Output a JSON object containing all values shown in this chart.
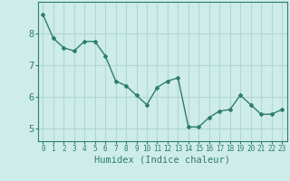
{
  "x": [
    0,
    1,
    2,
    3,
    4,
    5,
    6,
    7,
    8,
    9,
    10,
    11,
    12,
    13,
    14,
    15,
    16,
    17,
    18,
    19,
    20,
    21,
    22,
    23
  ],
  "y": [
    8.6,
    7.85,
    7.55,
    7.45,
    7.75,
    7.75,
    7.3,
    6.5,
    6.35,
    6.05,
    5.75,
    6.3,
    6.5,
    6.6,
    5.05,
    5.05,
    5.35,
    5.55,
    5.6,
    6.05,
    5.75,
    5.45,
    5.45,
    5.6
  ],
  "xlabel": "Humidex (Indice chaleur)",
  "xlim": [
    -0.5,
    23.5
  ],
  "ylim": [
    4.6,
    9.0
  ],
  "yticks": [
    5,
    6,
    7,
    8
  ],
  "xticks": [
    0,
    1,
    2,
    3,
    4,
    5,
    6,
    7,
    8,
    9,
    10,
    11,
    12,
    13,
    14,
    15,
    16,
    17,
    18,
    19,
    20,
    21,
    22,
    23
  ],
  "line_color": "#2d7d6e",
  "marker": "D",
  "marker_size": 2.0,
  "bg_color": "#ceecea",
  "grid_color": "#b0d8d4",
  "tick_color": "#2d7d6e",
  "label_color": "#2d7d6e",
  "font_size_xlabel": 7.5,
  "font_size_yticks": 7.5,
  "font_size_xticks": 5.5,
  "line_width": 1.0
}
